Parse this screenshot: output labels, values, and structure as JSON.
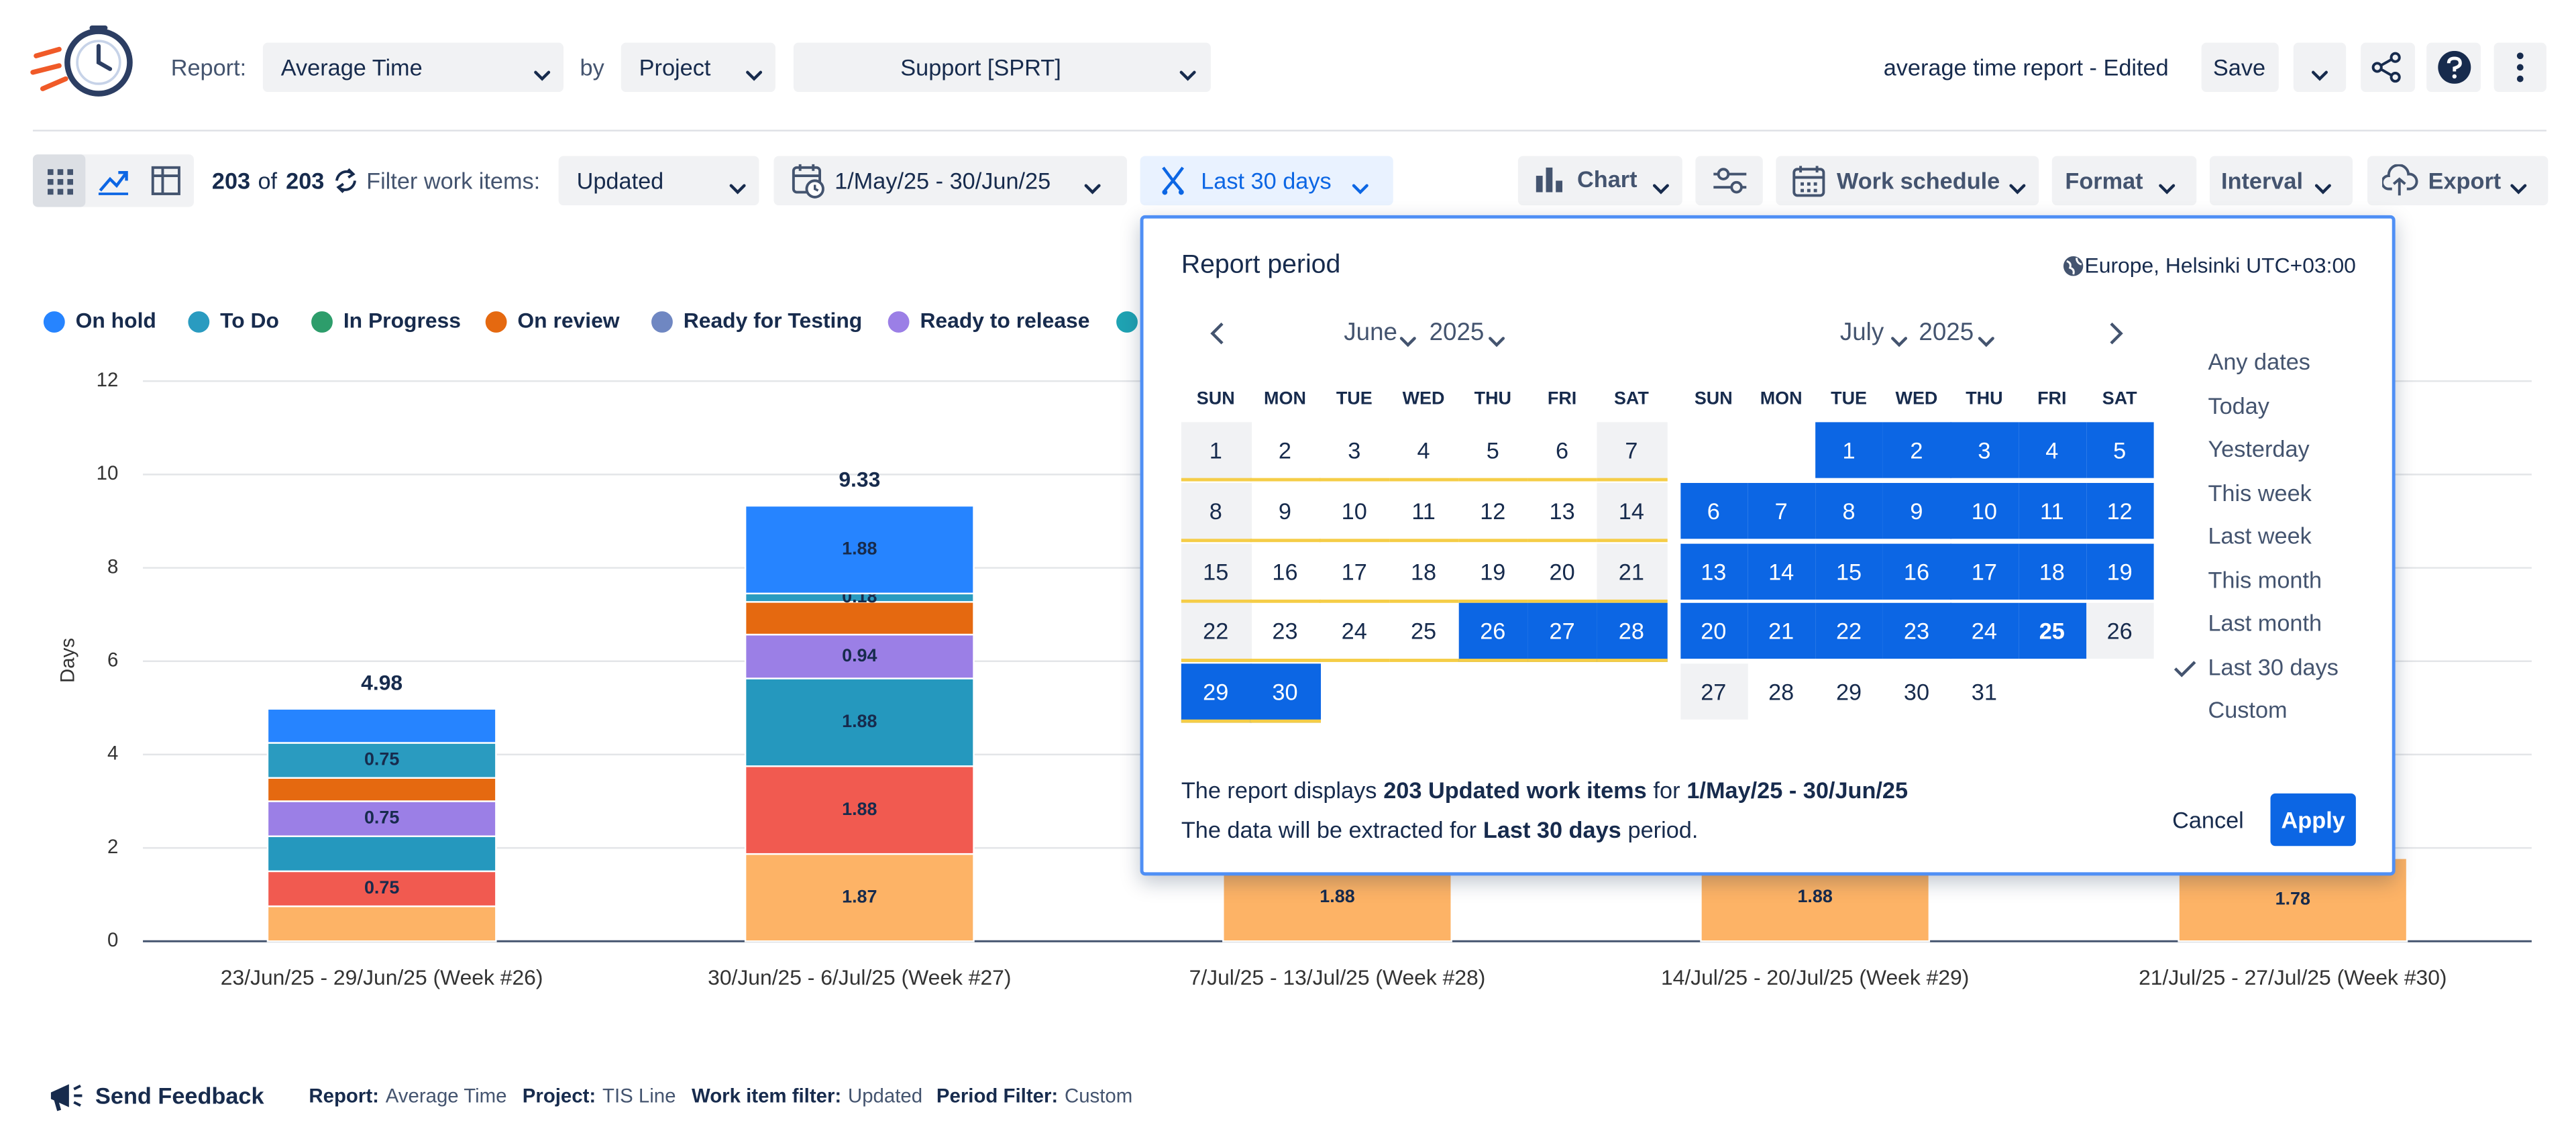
{
  "header": {
    "report_label": "Report:",
    "report": "Average Time",
    "by": "by",
    "group": "Project",
    "project": "Support [SPRT]",
    "report_name": "average time report - Edited",
    "save": "Save"
  },
  "toolbar": {
    "count": "203",
    "of": "of",
    "total": "203",
    "filter_label": "Filter work items:",
    "filter": "Updated",
    "date_range": "1/May/25 - 30/Jun/25",
    "period": "Last 30 days",
    "chart": "Chart",
    "work_schedule": "Work schedule",
    "format": "Format",
    "interval": "Interval",
    "export": "Export"
  },
  "chart_data": {
    "type": "bar",
    "stacked": true,
    "y_label": "Days",
    "ylim": [
      0,
      12
    ],
    "yticks": [
      0,
      2,
      4,
      6,
      8,
      10,
      12
    ],
    "grid": true,
    "legend": [
      {
        "name": "On hold",
        "color": "#2684ff"
      },
      {
        "name": "To Do",
        "color": "#2a9bc0"
      },
      {
        "name": "In Progress",
        "color": "#2d9d6b"
      },
      {
        "name": "On review",
        "color": "#e56910"
      },
      {
        "name": "Ready for Testing",
        "color": "#6f87c2"
      },
      {
        "name": "Ready to release",
        "color": "#9b7fe6"
      },
      {
        "color": "#1fa3b3"
      }
    ],
    "categories": [
      "23/Jun/25 - 29/Jun/25 (Week #26)",
      "30/Jun/25 - 6/Jul/25 (Week #27)",
      "7/Jul/25 - 13/Jul/25 (Week #28)",
      "14/Jul/25 - 20/Jul/25 (Week #29)",
      "21/Jul/25 - 27/Jul/25 (Week #30)"
    ],
    "series": [
      {
        "color": "#fdb366",
        "values": [
          0.75,
          1.87,
          1.88,
          1.88,
          1.78
        ],
        "value_labels": [
          null,
          "1.87",
          "1.88",
          "1.88",
          "1.78"
        ]
      },
      {
        "color": "#f15a50",
        "values": [
          0.75,
          1.88,
          null,
          null,
          null
        ],
        "value_labels": [
          "0.75",
          "1.88",
          null,
          null,
          null
        ]
      },
      {
        "color": "#2598be",
        "values": [
          0.75,
          1.88,
          null,
          null,
          null
        ],
        "value_labels": [
          null,
          "1.88",
          null,
          null,
          null
        ]
      },
      {
        "color": "#9b7fe6",
        "values": [
          0.75,
          0.94,
          null,
          null,
          null
        ],
        "value_labels": [
          "0.75",
          "0.94",
          null,
          null,
          null
        ]
      },
      {
        "color": "#e56910",
        "values": [
          0.5,
          0.7,
          null,
          null,
          null
        ],
        "value_labels": [
          null,
          null,
          null,
          null,
          null
        ]
      },
      {
        "color": "#2a9bc0",
        "values": [
          0.75,
          0.18,
          null,
          null,
          null
        ],
        "value_labels": [
          "0.75",
          "0.18",
          null,
          null,
          null
        ]
      },
      {
        "color": "#2684ff",
        "values": [
          0.73,
          1.88,
          null,
          null,
          null
        ],
        "value_labels": [
          null,
          "1.88",
          null,
          null,
          null
        ]
      }
    ],
    "totals": [
      4.98,
      9.33,
      null,
      null,
      null
    ]
  },
  "popup": {
    "title": "Report period",
    "timezone": "Europe, Helsinki UTC+03:00",
    "weekdays": [
      "SUN",
      "MON",
      "TUE",
      "WED",
      "THU",
      "FRI",
      "SAT"
    ],
    "months": [
      {
        "month": "June",
        "year": "2025",
        "weeks": [
          [
            1,
            2,
            3,
            4,
            5,
            6,
            7
          ],
          [
            8,
            9,
            10,
            11,
            12,
            13,
            14
          ],
          [
            15,
            16,
            17,
            18,
            19,
            20,
            21
          ],
          [
            22,
            23,
            24,
            25,
            26,
            27,
            28
          ],
          [
            29,
            30
          ]
        ]
      },
      {
        "month": "July",
        "year": "2025",
        "weeks": [
          [
            null,
            null,
            1,
            2,
            3,
            4,
            5
          ],
          [
            6,
            7,
            8,
            9,
            10,
            11,
            12
          ],
          [
            13,
            14,
            15,
            16,
            17,
            18,
            19
          ],
          [
            20,
            21,
            22,
            23,
            24,
            25,
            26
          ],
          [
            27,
            28,
            29,
            30,
            31
          ]
        ]
      }
    ],
    "presets": [
      "Any dates",
      "Today",
      "Yesterday",
      "This week",
      "Last week",
      "This month",
      "Last month",
      "Last 30 days",
      "Custom"
    ],
    "summary": [
      [
        "The report displays",
        "203 Updated work items",
        "for",
        "1/May/25 - 30/Jun/25"
      ],
      [
        "The data will be extracted for",
        "Last 30 days",
        "period."
      ]
    ],
    "cancel": "Cancel",
    "apply": "Apply"
  },
  "footer": {
    "feedback": "Send Feedback",
    "items": [
      {
        "label": "Report:",
        "value": "Average Time"
      },
      {
        "label": "Project:",
        "value": "TIS Line"
      },
      {
        "label": "Work item filter:",
        "value": "Updated"
      },
      {
        "label": "Period Filter:",
        "value": "Custom"
      }
    ]
  }
}
